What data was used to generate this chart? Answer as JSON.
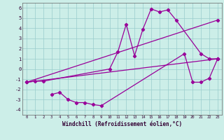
{
  "xlabel": "Windchill (Refroidissement éolien,°C)",
  "xlim": [
    -0.5,
    23.5
  ],
  "ylim": [
    -4.5,
    6.5
  ],
  "xticks": [
    0,
    1,
    2,
    3,
    4,
    5,
    6,
    7,
    8,
    9,
    10,
    11,
    12,
    13,
    14,
    15,
    16,
    17,
    18,
    19,
    20,
    21,
    22,
    23
  ],
  "yticks": [
    -4,
    -3,
    -2,
    -1,
    0,
    1,
    2,
    3,
    4,
    5,
    6
  ],
  "background_color": "#cceee8",
  "grid_color": "#99cccc",
  "line_color": "#990099",
  "series": [
    {
      "x": [
        0,
        1,
        2,
        10,
        11,
        12,
        13,
        14,
        15,
        16,
        17,
        18,
        21,
        22,
        23
      ],
      "y": [
        -1.3,
        -1.2,
        -1.2,
        0.0,
        1.7,
        4.4,
        1.3,
        3.9,
        5.9,
        5.6,
        5.8,
        4.8,
        1.5,
        1.0,
        1.0
      ]
    },
    {
      "x": [
        0,
        23
      ],
      "y": [
        -1.3,
        4.8
      ]
    },
    {
      "x": [
        0,
        23
      ],
      "y": [
        -1.3,
        1.0
      ]
    },
    {
      "x": [
        3,
        4,
        5,
        6,
        7,
        8,
        9,
        19,
        20,
        21,
        22,
        23
      ],
      "y": [
        -2.5,
        -2.3,
        -3.0,
        -3.3,
        -3.3,
        -3.5,
        -3.6,
        1.5,
        -1.3,
        -1.3,
        -0.9,
        1.0
      ]
    }
  ]
}
